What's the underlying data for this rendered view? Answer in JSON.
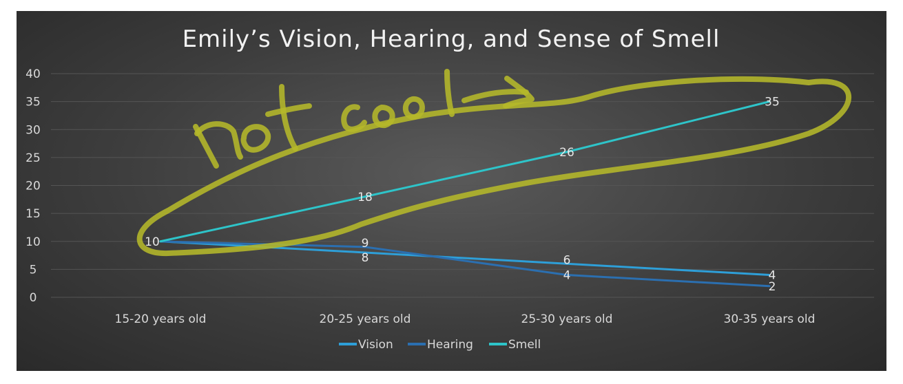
{
  "chart_data": {
    "type": "line",
    "title": "Emily’s Vision, Hearing, and Sense of Smell",
    "categories": [
      "15-20 years old",
      "20-25 years old",
      "25-30 years old",
      "30-35 years old"
    ],
    "ylim": [
      0,
      40
    ],
    "yticks": [
      0,
      5,
      10,
      15,
      20,
      25,
      30,
      35,
      40
    ],
    "grid": true,
    "legend": "bottom",
    "series": [
      {
        "name": "Vision",
        "values": [
          10,
          8,
          6,
          4
        ],
        "color": "#2e9fd8"
      },
      {
        "name": "Hearing",
        "values": [
          10,
          9,
          4,
          2
        ],
        "color": "#2b6fb0"
      },
      {
        "name": "Smell",
        "values": [
          10,
          18,
          26,
          35
        ],
        "color": "#2ec4c9"
      }
    ],
    "annotation": {
      "text": "not cool",
      "style": "handwritten highlighter",
      "color": "#b5b82a"
    }
  }
}
